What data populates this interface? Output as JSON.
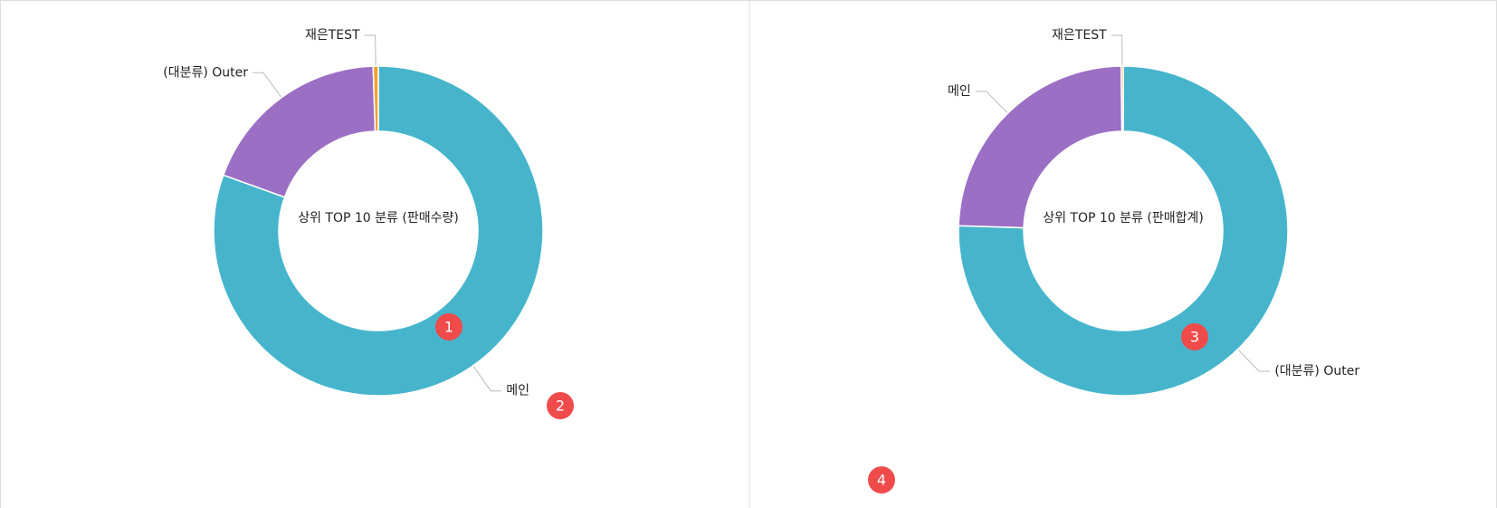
{
  "chart_data": [
    {
      "type": "pie",
      "title": "상위 TOP 10 분류 (판매수량)",
      "categories": [
        "메인",
        "(대분류) Outer",
        "재은TEST"
      ],
      "values": [
        80.5,
        19,
        0.5
      ],
      "colors": [
        "#46b5cc",
        "#9b6fc4",
        "#f0a030"
      ]
    },
    {
      "type": "pie",
      "title": "상위 TOP 10 분류 (판매합계)",
      "categories": [
        "(대분류) Outer",
        "메인",
        "재은TEST"
      ],
      "values": [
        75.5,
        24.3,
        0.2
      ],
      "colors": [
        "#46b5cc",
        "#9b6fc4",
        "#f0a030"
      ]
    }
  ],
  "markers": [
    "1",
    "2",
    "3",
    "4"
  ]
}
